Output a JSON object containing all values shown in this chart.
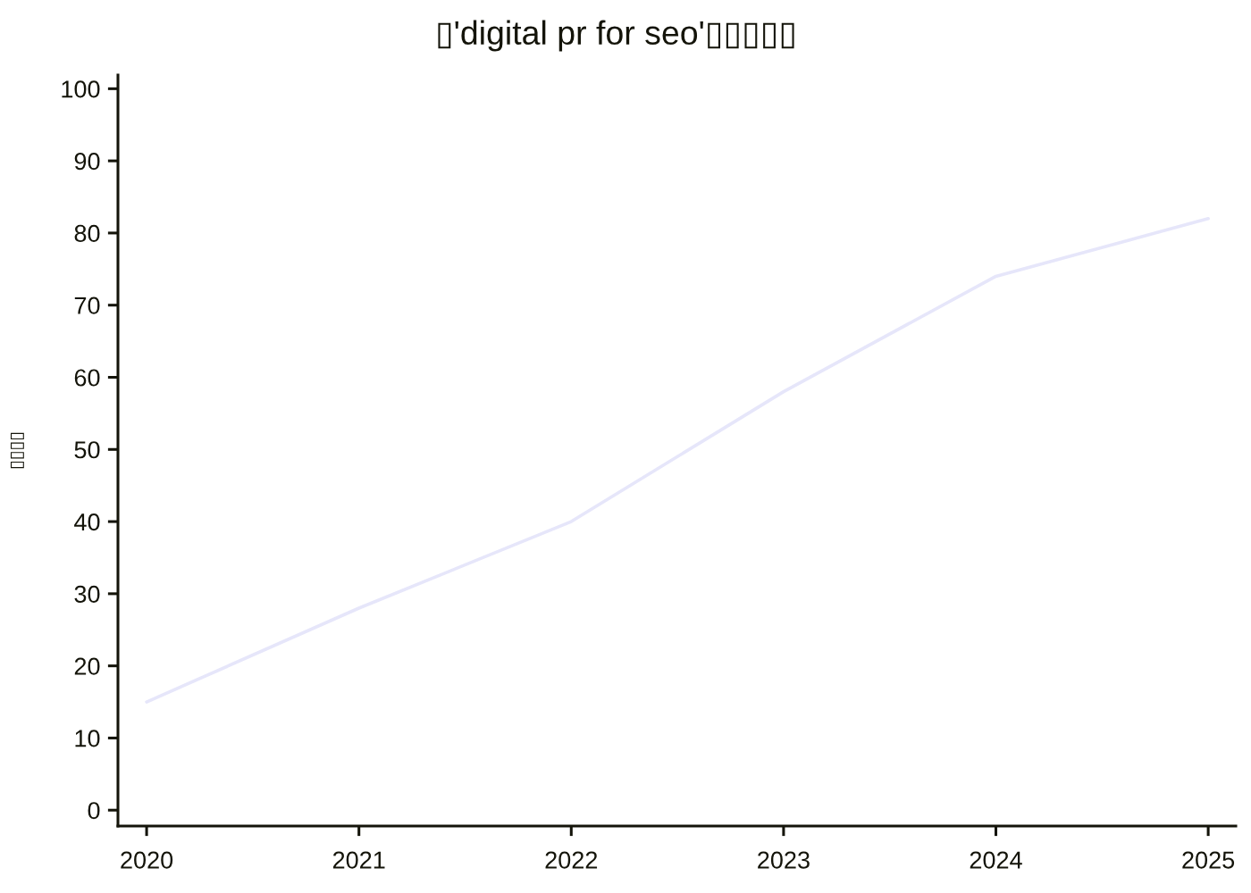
{
  "chart_data": {
    "type": "line",
    "title": "▯'digital pr for seo'▯▯▯▯▯",
    "ylabel": "▯▯▯▯",
    "x": [
      2020,
      2021,
      2022,
      2023,
      2024,
      2025
    ],
    "series": [
      {
        "color": "#e6e6fa",
        "values": [
          15,
          28,
          40,
          58,
          74,
          82
        ]
      }
    ],
    "line_style": "solid",
    "xlim": [
      2019.865,
      2025.13
    ],
    "xticks": [
      2020,
      2021,
      2022,
      2023,
      2024,
      2025
    ],
    "ylim": [
      -2.2,
      101.9
    ],
    "yticks": [
      0,
      10,
      20,
      30,
      40,
      50,
      60,
      70,
      80,
      90,
      100
    ]
  }
}
